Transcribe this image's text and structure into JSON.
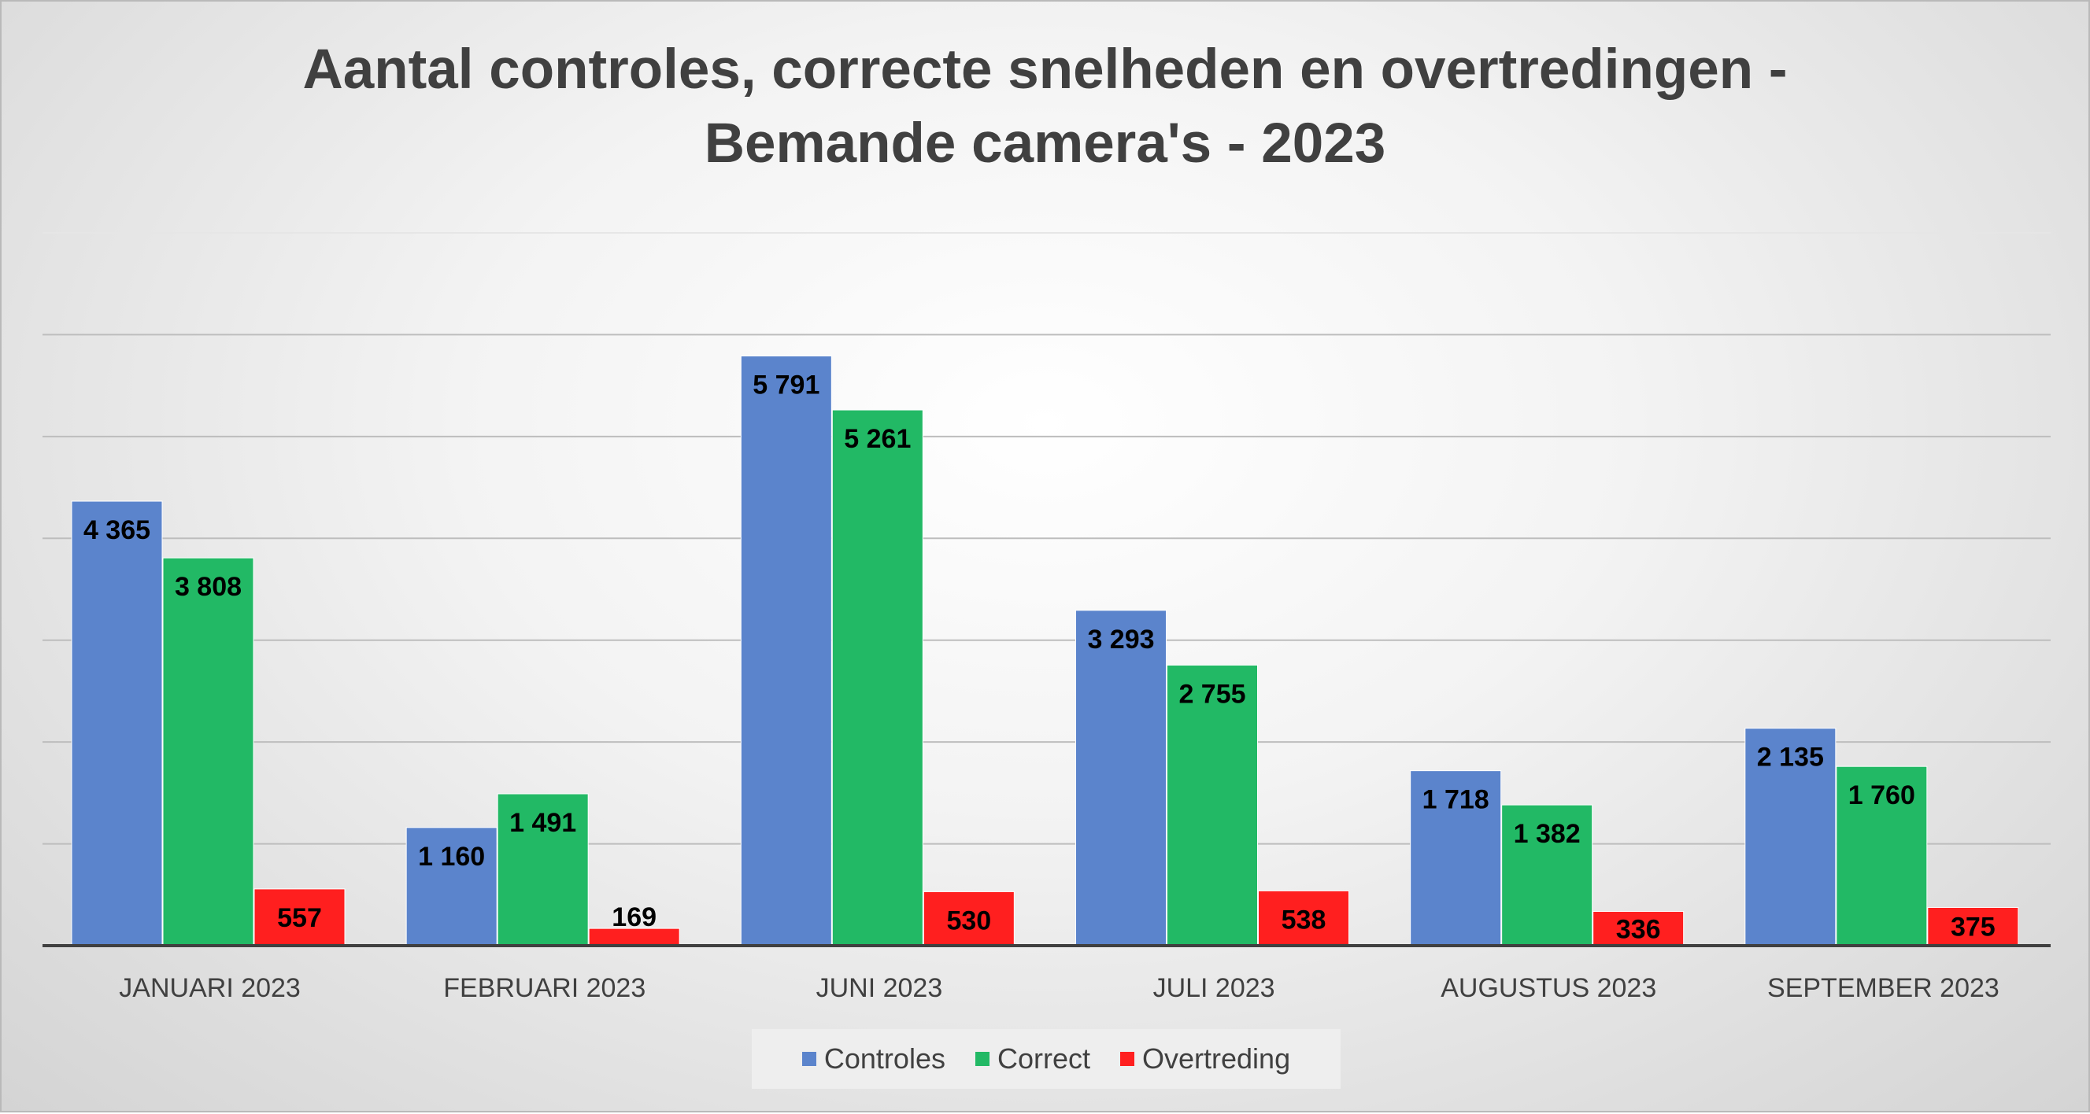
{
  "chart_data": {
    "type": "bar",
    "title_lines": [
      "Aantal controles, correcte snelheden en overtredingen -",
      "Bemande camera's - 2023"
    ],
    "categories": [
      "JANUARI 2023",
      "FEBRUARI 2023",
      "JUNI 2023",
      "JULI 2023",
      "AUGUSTUS 2023",
      "SEPTEMBER 2023"
    ],
    "series": [
      {
        "name": "Controles",
        "color": "#5b84cc",
        "values": [
          4365,
          1160,
          5791,
          3293,
          1718,
          2135
        ],
        "labels": [
          "4 365",
          "1 160",
          "5 791",
          "3 293",
          "1 718",
          "2 135"
        ]
      },
      {
        "name": "Correct",
        "color": "#22b965",
        "values": [
          3808,
          1491,
          5261,
          2755,
          1382,
          1760
        ],
        "labels": [
          "3 808",
          "1 491",
          "5 261",
          "2 755",
          "1 382",
          "1 760"
        ]
      },
      {
        "name": "Overtreding",
        "color": "#ff1f1f",
        "values": [
          557,
          169,
          530,
          538,
          336,
          375
        ],
        "labels": [
          "557",
          "169",
          "530",
          "538",
          "336",
          "375"
        ]
      }
    ],
    "ylim": [
      0,
      7000
    ],
    "grid": true,
    "legend_position": "bottom"
  }
}
